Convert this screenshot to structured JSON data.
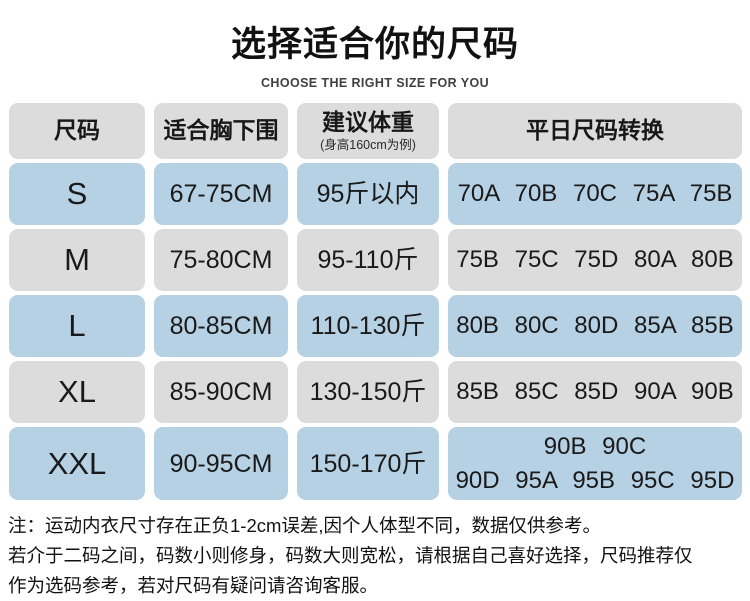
{
  "header": {
    "title": "选择适合你的尺码",
    "subtitle": "CHOOSE THE RIGHT SIZE FOR YOU"
  },
  "table": {
    "columns": {
      "size": "尺码",
      "underbust": "适合胸下围",
      "weight": "建议体重",
      "weight_note": "(身高160cm为例)",
      "conversion": "平日尺码转换"
    },
    "rows": [
      {
        "size": "S",
        "underbust": "67-75CM",
        "weight": "95斤以内",
        "conversion": "70A 70B 70C 75A 75B"
      },
      {
        "size": "M",
        "underbust": "75-80CM",
        "weight": "95-110斤",
        "conversion": "75B 75C 75D 80A 80B"
      },
      {
        "size": "L",
        "underbust": "80-85CM",
        "weight": "110-130斤",
        "conversion": "80B 80C 80D 85A 85B"
      },
      {
        "size": "XL",
        "underbust": "85-90CM",
        "weight": "130-150斤",
        "conversion": "85B 85C 85D 90A 90B"
      },
      {
        "size": "XXL",
        "underbust": "90-95CM",
        "weight": "150-170斤",
        "conversion_line1": "90B 90C",
        "conversion_line2": "90D 95A 95B 95C 95D"
      }
    ]
  },
  "notes": {
    "line1": "注：运动内衣尺寸存在正负1-2cm误差,因个人体型不同，数据仅供参考。",
    "line2": "若介于二码之间，码数小则修身，码数大则宽松，请根据自己喜好选择，尺码推荐仅",
    "line3": "作为选码参考，若对尺码有疑问请咨询客服。"
  },
  "colors": {
    "row_blue": "#b6d0e4",
    "row_gray": "#dcdcdc",
    "text": "#1a1a1a"
  }
}
